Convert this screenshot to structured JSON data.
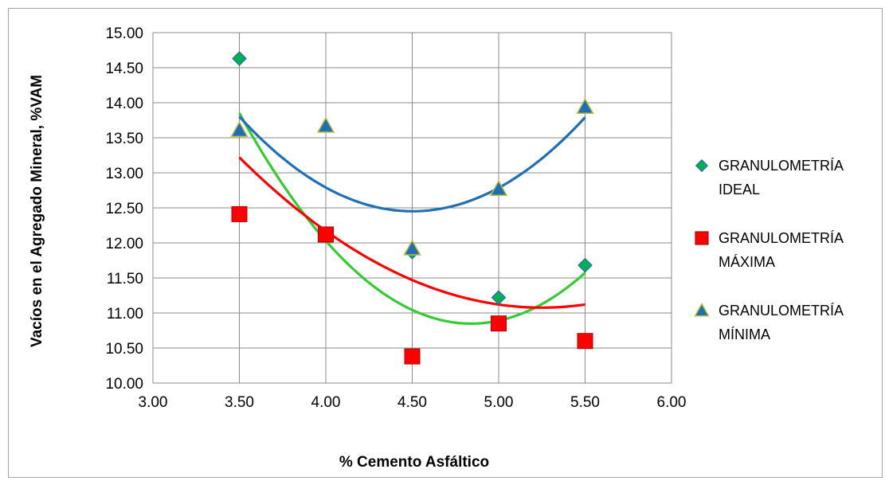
{
  "chart_data": {
    "type": "scatter",
    "xlabel": "% Cemento Asfáltico",
    "ylabel": "Vacíos en el Agregado Mineral, %VAM",
    "xlim": [
      3.0,
      6.0
    ],
    "ylim": [
      10.0,
      15.0
    ],
    "x_ticks": [
      "3.00",
      "3.50",
      "4.00",
      "4.50",
      "5.00",
      "5.50",
      "6.00"
    ],
    "y_ticks": [
      "10.00",
      "10.50",
      "11.00",
      "11.50",
      "12.00",
      "12.50",
      "13.00",
      "13.50",
      "14.00",
      "14.50",
      "15.00"
    ],
    "grid": "vertical and horizontal major gridlines",
    "legend_position": "right",
    "series": [
      {
        "name": "GRANULOMETRÍA IDEAL",
        "legend_lines": [
          "GRANULOMETRÍA",
          "IDEAL"
        ],
        "marker": "diamond",
        "color": "#00b050",
        "trendline_color": "#33cc33",
        "x": [
          3.5,
          4.5,
          5.0,
          5.5
        ],
        "y": [
          14.63,
          11.87,
          11.22,
          11.68
        ],
        "trend_poly": [
          49.99,
          -16.17,
          1.67
        ]
      },
      {
        "name": "GRANULOMETRÍA MÁXIMA",
        "legend_lines": [
          "GRANULOMETRÍA",
          "MÁXIMA"
        ],
        "marker": "square",
        "color": "#ff0000",
        "trendline_color": "#ff0000",
        "x": [
          3.5,
          4.0,
          4.5,
          5.0,
          5.5
        ],
        "y": [
          12.41,
          12.12,
          10.38,
          10.85,
          10.6
        ],
        "trend_poly": [
          30.37,
          -7.35,
          0.7
        ]
      },
      {
        "name": "GRANULOMETRÍA MÍNIMA",
        "legend_lines": [
          "GRANULOMETRÍA",
          "MÍNIMA"
        ],
        "marker": "triangle",
        "color": "#1f6fb4",
        "border": "#bfbf3a",
        "trendline_color": "#1f6fb4",
        "x": [
          3.5,
          4.0,
          4.5,
          5.0,
          5.5
        ],
        "y": [
          13.61,
          13.67,
          11.92,
          12.77,
          13.94
        ],
        "trend_poly": [
          39.71,
          -12.11,
          1.345
        ]
      }
    ]
  }
}
